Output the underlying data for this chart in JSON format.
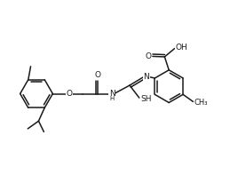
{
  "lw": 1.1,
  "lc": "#1a1a1a",
  "fs": 6.5,
  "R": 0.68,
  "figsize": [
    2.59,
    1.97
  ],
  "dpi": 100,
  "xlim": [
    0,
    9.5
  ],
  "ylim": [
    0.5,
    7.8
  ]
}
